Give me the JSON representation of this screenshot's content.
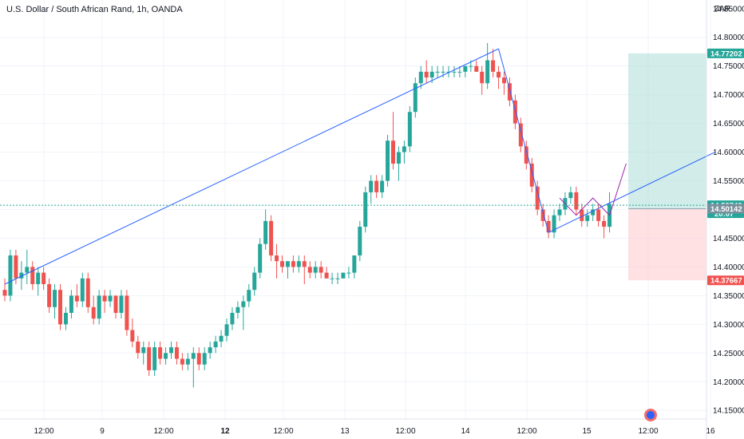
{
  "header": {
    "symbol_title": "U.S. Dollar / South African Rand, 1h, OANDA",
    "currency": "ZAR"
  },
  "colors": {
    "up": "#26a69a",
    "down": "#ef5350",
    "trendline": "#2962ff",
    "projection": "#9c27b0",
    "target_zone": "#b2dfdb",
    "stop_zone": "#ffcdd2",
    "current_price_tag": "#26a69a",
    "target_tag": "#26a69a",
    "stop_tag": "#ef5350",
    "entry_tag": "#78909c"
  },
  "price_axis": {
    "ticks": [
      "14.80000",
      "14.75000",
      "14.70000",
      "14.65000",
      "14.60000",
      "14.55000",
      "14.50000",
      "14.45000",
      "14.40000",
      "14.35000",
      "14.30000",
      "14.25000",
      "14.20000",
      "14.15000"
    ],
    "top_partial": "14.85000",
    "target_price": "14.77202",
    "current_price": "14.50740",
    "countdown": "20:07",
    "entry_price": "14.50142",
    "stop_price": "14.37667"
  },
  "time_axis": {
    "labels": [
      "12:00",
      "9",
      "12:00",
      "12",
      "12:00",
      "13",
      "12:00",
      "14",
      "12:00",
      "15",
      "12:00",
      "16"
    ],
    "bold": [
      false,
      false,
      false,
      true,
      false,
      false,
      false,
      false,
      false,
      false,
      false,
      false
    ]
  },
  "chart_data": {
    "type": "candlestick",
    "title": "U.S. Dollar / South African Rand, 1h, OANDA",
    "ylim": [
      14.135,
      14.865
    ],
    "candles": [
      [
        14.36,
        14.38,
        14.34,
        14.35
      ],
      [
        14.35,
        14.43,
        14.34,
        14.42
      ],
      [
        14.42,
        14.43,
        14.37,
        14.38
      ],
      [
        14.38,
        14.41,
        14.36,
        14.39
      ],
      [
        14.39,
        14.43,
        14.37,
        14.4
      ],
      [
        14.4,
        14.41,
        14.36,
        14.37
      ],
      [
        14.37,
        14.4,
        14.35,
        14.39
      ],
      [
        14.39,
        14.4,
        14.36,
        14.37
      ],
      [
        14.37,
        14.38,
        14.32,
        14.33
      ],
      [
        14.33,
        14.37,
        14.31,
        14.36
      ],
      [
        14.36,
        14.37,
        14.29,
        14.3
      ],
      [
        14.3,
        14.33,
        14.29,
        14.32
      ],
      [
        14.32,
        14.36,
        14.31,
        14.35
      ],
      [
        14.35,
        14.37,
        14.33,
        14.34
      ],
      [
        14.34,
        14.39,
        14.33,
        14.38
      ],
      [
        14.38,
        14.39,
        14.32,
        14.33
      ],
      [
        14.33,
        14.35,
        14.3,
        14.31
      ],
      [
        14.31,
        14.36,
        14.3,
        14.35
      ],
      [
        14.35,
        14.36,
        14.32,
        14.34
      ],
      [
        14.34,
        14.36,
        14.33,
        14.35
      ],
      [
        14.35,
        14.35,
        14.31,
        14.32
      ],
      [
        14.32,
        14.36,
        14.31,
        14.35
      ],
      [
        14.35,
        14.36,
        14.28,
        14.29
      ],
      [
        14.29,
        14.31,
        14.26,
        14.27
      ],
      [
        14.27,
        14.28,
        14.24,
        14.25
      ],
      [
        14.25,
        14.27,
        14.23,
        14.26
      ],
      [
        14.26,
        14.27,
        14.21,
        14.22
      ],
      [
        14.22,
        14.27,
        14.21,
        14.26
      ],
      [
        14.26,
        14.27,
        14.23,
        14.24
      ],
      [
        14.24,
        14.26,
        14.23,
        14.25
      ],
      [
        14.25,
        14.27,
        14.24,
        14.26
      ],
      [
        14.26,
        14.27,
        14.23,
        14.24
      ],
      [
        14.24,
        14.25,
        14.22,
        14.23
      ],
      [
        14.23,
        14.25,
        14.22,
        14.24
      ],
      [
        14.24,
        14.26,
        14.19,
        14.25
      ],
      [
        14.25,
        14.26,
        14.22,
        14.23
      ],
      [
        14.23,
        14.26,
        14.22,
        14.25
      ],
      [
        14.25,
        14.27,
        14.24,
        14.26
      ],
      [
        14.26,
        14.28,
        14.25,
        14.27
      ],
      [
        14.27,
        14.29,
        14.26,
        14.28
      ],
      [
        14.28,
        14.31,
        14.27,
        14.3
      ],
      [
        14.3,
        14.33,
        14.29,
        14.32
      ],
      [
        14.32,
        14.34,
        14.31,
        14.33
      ],
      [
        14.33,
        14.35,
        14.29,
        14.34
      ],
      [
        14.34,
        14.37,
        14.33,
        14.36
      ],
      [
        14.36,
        14.4,
        14.35,
        14.39
      ],
      [
        14.39,
        14.45,
        14.38,
        14.44
      ],
      [
        14.44,
        14.5,
        14.43,
        14.48
      ],
      [
        14.48,
        14.49,
        14.41,
        14.42
      ],
      [
        14.42,
        14.44,
        14.38,
        14.41
      ],
      [
        14.41,
        14.42,
        14.39,
        14.4
      ],
      [
        14.4,
        14.41,
        14.38,
        14.41
      ],
      [
        14.41,
        14.42,
        14.39,
        14.4
      ],
      [
        14.4,
        14.42,
        14.39,
        14.41
      ],
      [
        14.41,
        14.42,
        14.37,
        14.4
      ],
      [
        14.4,
        14.41,
        14.38,
        14.39
      ],
      [
        14.39,
        14.41,
        14.38,
        14.4
      ],
      [
        14.4,
        14.41,
        14.38,
        14.39
      ],
      [
        14.39,
        14.4,
        14.38,
        14.38
      ],
      [
        14.38,
        14.39,
        14.37,
        14.38
      ],
      [
        14.38,
        14.39,
        14.37,
        14.38
      ],
      [
        14.38,
        14.39,
        14.38,
        14.39
      ],
      [
        14.39,
        14.4,
        14.38,
        14.39
      ],
      [
        14.39,
        14.42,
        14.38,
        14.42
      ],
      [
        14.42,
        14.48,
        14.41,
        14.47
      ],
      [
        14.47,
        14.54,
        14.46,
        14.53
      ],
      [
        14.53,
        14.56,
        14.51,
        14.55
      ],
      [
        14.55,
        14.56,
        14.52,
        14.53
      ],
      [
        14.53,
        14.56,
        14.52,
        14.55
      ],
      [
        14.55,
        14.63,
        14.54,
        14.62
      ],
      [
        14.62,
        14.67,
        14.57,
        14.58
      ],
      [
        14.58,
        14.61,
        14.55,
        14.6
      ],
      [
        14.6,
        14.62,
        14.58,
        14.61
      ],
      [
        14.61,
        14.68,
        14.6,
        14.67
      ],
      [
        14.67,
        14.73,
        14.66,
        14.72
      ],
      [
        14.72,
        14.75,
        14.71,
        14.74
      ],
      [
        14.74,
        14.76,
        14.72,
        14.73
      ],
      [
        14.73,
        14.75,
        14.72,
        14.74
      ],
      [
        14.74,
        14.75,
        14.73,
        14.74
      ],
      [
        14.74,
        14.75,
        14.73,
        14.74
      ],
      [
        14.74,
        14.75,
        14.73,
        14.74
      ],
      [
        14.74,
        14.75,
        14.73,
        14.74
      ],
      [
        14.74,
        14.75,
        14.73,
        14.74
      ],
      [
        14.74,
        14.75,
        14.73,
        14.75
      ],
      [
        14.75,
        14.76,
        14.74,
        14.75
      ],
      [
        14.75,
        14.76,
        14.74,
        14.74
      ],
      [
        14.74,
        14.75,
        14.7,
        14.72
      ],
      [
        14.72,
        14.79,
        14.71,
        14.76
      ],
      [
        14.76,
        14.78,
        14.73,
        14.74
      ],
      [
        14.74,
        14.75,
        14.71,
        14.73
      ],
      [
        14.73,
        14.74,
        14.7,
        14.72
      ],
      [
        14.72,
        14.73,
        14.68,
        14.69
      ],
      [
        14.69,
        14.7,
        14.64,
        14.65
      ],
      [
        14.65,
        14.66,
        14.6,
        14.61
      ],
      [
        14.61,
        14.62,
        14.57,
        14.58
      ],
      [
        14.58,
        14.59,
        14.53,
        14.54
      ],
      [
        14.54,
        14.55,
        14.49,
        14.5
      ],
      [
        14.5,
        14.51,
        14.47,
        14.48
      ],
      [
        14.48,
        14.49,
        14.45,
        14.46
      ],
      [
        14.46,
        14.5,
        14.45,
        14.49
      ],
      [
        14.49,
        14.51,
        14.48,
        14.5
      ],
      [
        14.5,
        14.53,
        14.49,
        14.52
      ],
      [
        14.52,
        14.54,
        14.51,
        14.53
      ],
      [
        14.53,
        14.54,
        14.49,
        14.5
      ],
      [
        14.5,
        14.51,
        14.47,
        14.48
      ],
      [
        14.48,
        14.5,
        14.47,
        14.49
      ],
      [
        14.49,
        14.51,
        14.48,
        14.5
      ],
      [
        14.5,
        14.51,
        14.47,
        14.48
      ],
      [
        14.48,
        14.49,
        14.45,
        14.47
      ],
      [
        14.47,
        14.53,
        14.46,
        14.51
      ]
    ],
    "lines": [
      {
        "name": "trendline-long",
        "points": [
          [
            0,
            14.37
          ],
          [
            89,
            14.78
          ]
        ]
      },
      {
        "name": "trendline-down",
        "points": [
          [
            89,
            14.78
          ],
          [
            98,
            14.46
          ]
        ]
      },
      {
        "name": "trendline-rising",
        "points": [
          [
            98,
            14.46
          ],
          [
            128,
            14.6
          ]
        ]
      }
    ],
    "projection": [
      [
        100,
        14.52
      ],
      [
        103,
        14.49
      ],
      [
        106,
        14.52
      ],
      [
        109,
        14.49
      ],
      [
        112,
        14.58
      ]
    ],
    "long_position": {
      "entry": 14.50142,
      "target": 14.77202,
      "stop": 14.37667
    }
  }
}
